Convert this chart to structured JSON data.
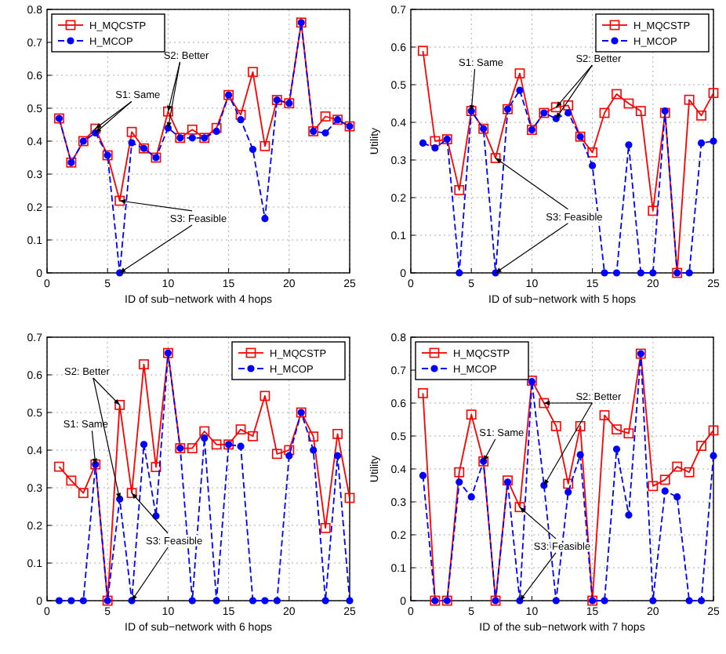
{
  "chart_data": [
    {
      "type": "line",
      "xlabel": "ID of sub−network with 4 hops",
      "xlim": [
        0,
        25
      ],
      "xticks": [
        0,
        5,
        10,
        15,
        20,
        25
      ],
      "ylim": [
        0,
        0.8
      ],
      "yticks": [
        0,
        0.1,
        0.2,
        0.3,
        0.4,
        0.5,
        0.6,
        0.7,
        0.8
      ],
      "grid": true,
      "legend": "top left",
      "x": [
        1,
        2,
        3,
        4,
        5,
        6,
        7,
        8,
        9,
        10,
        11,
        12,
        13,
        14,
        15,
        16,
        17,
        18,
        19,
        20,
        21,
        22,
        23,
        24,
        25
      ],
      "series": [
        {
          "name": "H_MQCSTP",
          "color": "#ff0000",
          "marker": "square",
          "line_style": "solid",
          "values": [
            0.469,
            0.335,
            0.4,
            0.438,
            0.357,
            0.219,
            0.428,
            0.378,
            0.35,
            0.49,
            0.41,
            0.435,
            0.41,
            0.44,
            0.54,
            0.48,
            0.61,
            0.385,
            0.525,
            0.515,
            0.76,
            0.43,
            0.475,
            0.465,
            0.445
          ]
        },
        {
          "name": "H_MCOP",
          "color": "#0000ff",
          "marker": "circle",
          "line_style": "dashed",
          "values": [
            0.469,
            0.335,
            0.4,
            0.425,
            0.357,
            0,
            0.395,
            0.378,
            0.35,
            0.44,
            0.41,
            0.41,
            0.41,
            0.43,
            0.54,
            0.465,
            0.375,
            0.165,
            0.525,
            0.515,
            0.76,
            0.43,
            0.425,
            0.465,
            0.445
          ]
        }
      ],
      "annotations": [
        {
          "text": "S1: Same",
          "x": 4,
          "y": 0.438
        },
        {
          "text": "S2: Better",
          "x": 10,
          "y": 0.49
        },
        {
          "text": "S3: Feasible",
          "x": 6,
          "y": 0.219
        }
      ]
    },
    {
      "type": "line",
      "xlabel": "ID of sub−network with 5 hops",
      "ylabel": "Utility",
      "xlim": [
        0,
        25
      ],
      "xticks": [
        0,
        5,
        10,
        15,
        20,
        25
      ],
      "ylim": [
        0,
        0.7
      ],
      "yticks": [
        0,
        0.1,
        0.2,
        0.3,
        0.4,
        0.5,
        0.6,
        0.7
      ],
      "grid": true,
      "legend": "top right",
      "x": [
        1,
        2,
        3,
        4,
        5,
        6,
        7,
        8,
        9,
        10,
        11,
        12,
        13,
        14,
        15,
        16,
        17,
        18,
        19,
        20,
        21,
        22,
        23,
        24,
        25
      ],
      "series": [
        {
          "name": "H_MQCSTP",
          "color": "#ff0000",
          "marker": "square",
          "line_style": "solid",
          "values": [
            0.59,
            0.35,
            0.355,
            0.22,
            0.43,
            0.383,
            0.305,
            0.435,
            0.53,
            0.38,
            0.425,
            0.44,
            0.445,
            0.362,
            0.32,
            0.425,
            0.475,
            0.45,
            0.43,
            0.165,
            0.425,
            0,
            0.46,
            0.418,
            0.478
          ]
        },
        {
          "name": "H_MCOP",
          "color": "#0000ff",
          "marker": "circle",
          "line_style": "dashed",
          "values": [
            0.345,
            0.332,
            0.355,
            0,
            0.43,
            0.383,
            0,
            0.435,
            0.485,
            0.38,
            0.425,
            0.41,
            0.425,
            0.362,
            0.285,
            0,
            0,
            0.34,
            0,
            0,
            0.43,
            0,
            0,
            0.345,
            0.35
          ]
        }
      ],
      "annotations": [
        {
          "text": "S1: Same",
          "x": 5,
          "y": 0.43
        },
        {
          "text": "S2: Better",
          "x": 12,
          "y": 0.44
        },
        {
          "text": "S3: Feasible",
          "x": 7,
          "y": 0.305
        }
      ]
    },
    {
      "type": "line",
      "xlabel": "ID of sub−network with 6 hops",
      "xlim": [
        0,
        25
      ],
      "xticks": [
        0,
        5,
        10,
        15,
        20,
        25
      ],
      "ylim": [
        0,
        0.7
      ],
      "yticks": [
        0,
        0.1,
        0.2,
        0.3,
        0.4,
        0.5,
        0.6,
        0.7
      ],
      "grid": true,
      "legend": "top right",
      "x": [
        1,
        2,
        3,
        4,
        5,
        6,
        7,
        8,
        9,
        10,
        11,
        12,
        13,
        14,
        15,
        16,
        17,
        18,
        19,
        20,
        21,
        22,
        23,
        24,
        25
      ],
      "series": [
        {
          "name": "H_MQCSTP",
          "color": "#ff0000",
          "marker": "square",
          "line_style": "solid",
          "values": [
            0.356,
            0.319,
            0.286,
            0.362,
            0,
            0.52,
            0.286,
            0.628,
            0.355,
            0.658,
            0.405,
            0.405,
            0.45,
            0.415,
            0.415,
            0.455,
            0.437,
            0.544,
            0.39,
            0.4,
            0.5,
            0.436,
            0.193,
            0.443,
            0.273
          ]
        },
        {
          "name": "H_MCOP",
          "color": "#0000ff",
          "marker": "circle",
          "line_style": "dashed",
          "values": [
            0,
            0,
            0,
            0.362,
            0,
            0.27,
            0,
            0.415,
            0.225,
            0.658,
            0.405,
            0,
            0.432,
            0,
            0.415,
            0.41,
            0,
            0,
            0,
            0.385,
            0.5,
            0.4,
            0,
            0.385,
            0
          ]
        }
      ],
      "annotations": [
        {
          "text": "S1: Same",
          "x": 4,
          "y": 0.362
        },
        {
          "text": "S2: Better",
          "x": 6,
          "y": 0.52
        },
        {
          "text": "S3: Feasible",
          "x": 7,
          "y": 0.286
        }
      ]
    },
    {
      "type": "line",
      "xlabel": "ID of the sub−network with 7 hops",
      "ylabel": "Utility",
      "xlim": [
        0,
        25
      ],
      "xticks": [
        0,
        5,
        10,
        15,
        20,
        25
      ],
      "ylim": [
        0,
        0.8
      ],
      "yticks": [
        0,
        0.1,
        0.2,
        0.3,
        0.4,
        0.5,
        0.6,
        0.7,
        0.8
      ],
      "grid": true,
      "legend": "top left",
      "x": [
        1,
        2,
        3,
        4,
        5,
        6,
        7,
        8,
        9,
        10,
        11,
        12,
        13,
        14,
        15,
        16,
        17,
        18,
        19,
        20,
        21,
        22,
        23,
        24,
        25
      ],
      "series": [
        {
          "name": "H_MQCSTP",
          "color": "#ff0000",
          "marker": "square",
          "line_style": "solid",
          "values": [
            0.63,
            0,
            0,
            0.39,
            0.565,
            0.423,
            0,
            0.365,
            0.284,
            0.668,
            0.6,
            0.53,
            0.355,
            0.53,
            0,
            0.563,
            0.52,
            0.508,
            0.75,
            0.348,
            0.367,
            0.407,
            0.39,
            0.47,
            0.517
          ]
        },
        {
          "name": "H_MCOP",
          "color": "#0000ff",
          "marker": "circle",
          "line_style": "dashed",
          "values": [
            0.38,
            0,
            0,
            0.36,
            0.315,
            0.423,
            0,
            0.36,
            0,
            0.665,
            0.35,
            0,
            0.33,
            0.443,
            0,
            0,
            0.46,
            0.26,
            0.75,
            0,
            0.333,
            0.315,
            0,
            0,
            0.44
          ]
        }
      ],
      "annotations": [
        {
          "text": "S1: Same",
          "x": 6,
          "y": 0.423
        },
        {
          "text": "S2: Better",
          "x": 11,
          "y": 0.6
        },
        {
          "text": "S3: Feasible",
          "x": 9,
          "y": 0.284
        }
      ]
    }
  ]
}
